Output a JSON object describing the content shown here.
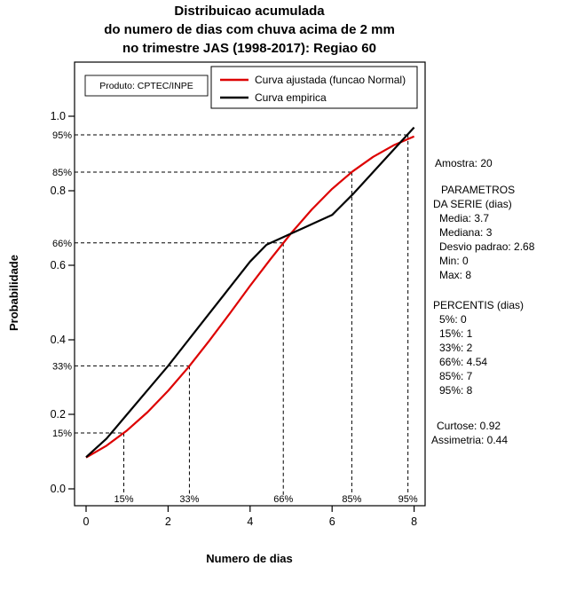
{
  "title": {
    "line1": "Distribuicao acumulada",
    "line2": "do numero de dias com chuva acima de 2 mm",
    "line3": "no trimestre JAS (1998-2017): Regiao 60"
  },
  "axes": {
    "x_label": "Numero de dias",
    "y_label": "Probabilidade"
  },
  "legend": {
    "source_label": "Produto: CPTEC/INPE",
    "items": [
      {
        "label": "Curva ajustada (funcao Normal)",
        "color": "#dd0000"
      },
      {
        "label": "Curva empirica",
        "color": "#000000"
      }
    ]
  },
  "stats": {
    "amostra": "Amostra: 20",
    "parametros": {
      "header1": "PARAMETROS",
      "header2": "DA SERIE (dias)",
      "items": [
        "Media: 3.7",
        "Mediana: 3",
        "Desvio padrao: 2.68",
        "Min: 0",
        "Max: 8"
      ]
    },
    "percentis": {
      "header": "PERCENTIS (dias)",
      "items": [
        "5%: 0",
        "15%: 1",
        "33%: 2",
        "66%: 4.54",
        "85%: 7",
        "95%: 8"
      ]
    },
    "curtose": "Curtose: 0.92",
    "assimetria": "Assimetria: 0.44"
  },
  "chart_data": {
    "type": "line",
    "title": "Distribuicao acumulada do numero de dias com chuva acima de 2 mm no trimestre JAS (1998-2017): Regiao 60",
    "xlabel": "Numero de dias",
    "ylabel": "Probabilidade",
    "xlim": [
      0,
      8
    ],
    "ylim": [
      0,
      1.1
    ],
    "grid": false,
    "legend_position": "top-inside",
    "x_ticks": [
      0,
      2,
      4,
      6,
      8
    ],
    "y_ticks": [
      "0.0",
      "0.2",
      "0.4",
      "0.6",
      "0.8",
      "1.0"
    ],
    "series": [
      {
        "id": "fitted-normal-curve",
        "name": "Curva ajustada (funcao Normal)",
        "color": "#dd0000",
        "x": [
          0,
          0.5,
          1,
          1.5,
          2,
          2.5,
          3,
          3.5,
          4,
          4.5,
          5,
          5.5,
          6,
          6.5,
          7,
          7.5,
          8
        ],
        "y": [
          0.084,
          0.116,
          0.157,
          0.206,
          0.263,
          0.327,
          0.397,
          0.47,
          0.545,
          0.617,
          0.686,
          0.749,
          0.805,
          0.852,
          0.891,
          0.922,
          0.946
        ]
      },
      {
        "id": "empirical-curve",
        "name": "Curva empirica",
        "color": "#000000",
        "x": [
          0,
          0.5,
          1,
          1.5,
          2,
          2.5,
          3,
          3.5,
          4,
          4.4,
          5,
          5.5,
          6,
          6.5,
          7,
          7.5,
          8
        ],
        "y": [
          0.085,
          0.135,
          0.2,
          0.265,
          0.33,
          0.4,
          0.47,
          0.54,
          0.61,
          0.655,
          0.685,
          0.71,
          0.735,
          0.79,
          0.85,
          0.91,
          0.97
        ]
      }
    ],
    "percentile_guides": [
      {
        "label": "15%",
        "x": 0.92,
        "y": 0.15
      },
      {
        "label": "33%",
        "x": 2.52,
        "y": 0.33
      },
      {
        "label": "66%",
        "x": 4.81,
        "y": 0.66
      },
      {
        "label": "85%",
        "x": 6.48,
        "y": 0.85
      },
      {
        "label": "95%",
        "x": 7.85,
        "y": 0.95
      }
    ],
    "sample_stats": {
      "amostra": 20,
      "media": 3.7,
      "mediana": 3,
      "desvio_padrao": 2.68,
      "min": 0,
      "max": 8,
      "percentis": {
        "5%": 0,
        "15%": 1,
        "33%": 2,
        "66%": 4.54,
        "85%": 7,
        "95%": 8
      },
      "curtose": 0.92,
      "assimetria": 0.44
    }
  }
}
